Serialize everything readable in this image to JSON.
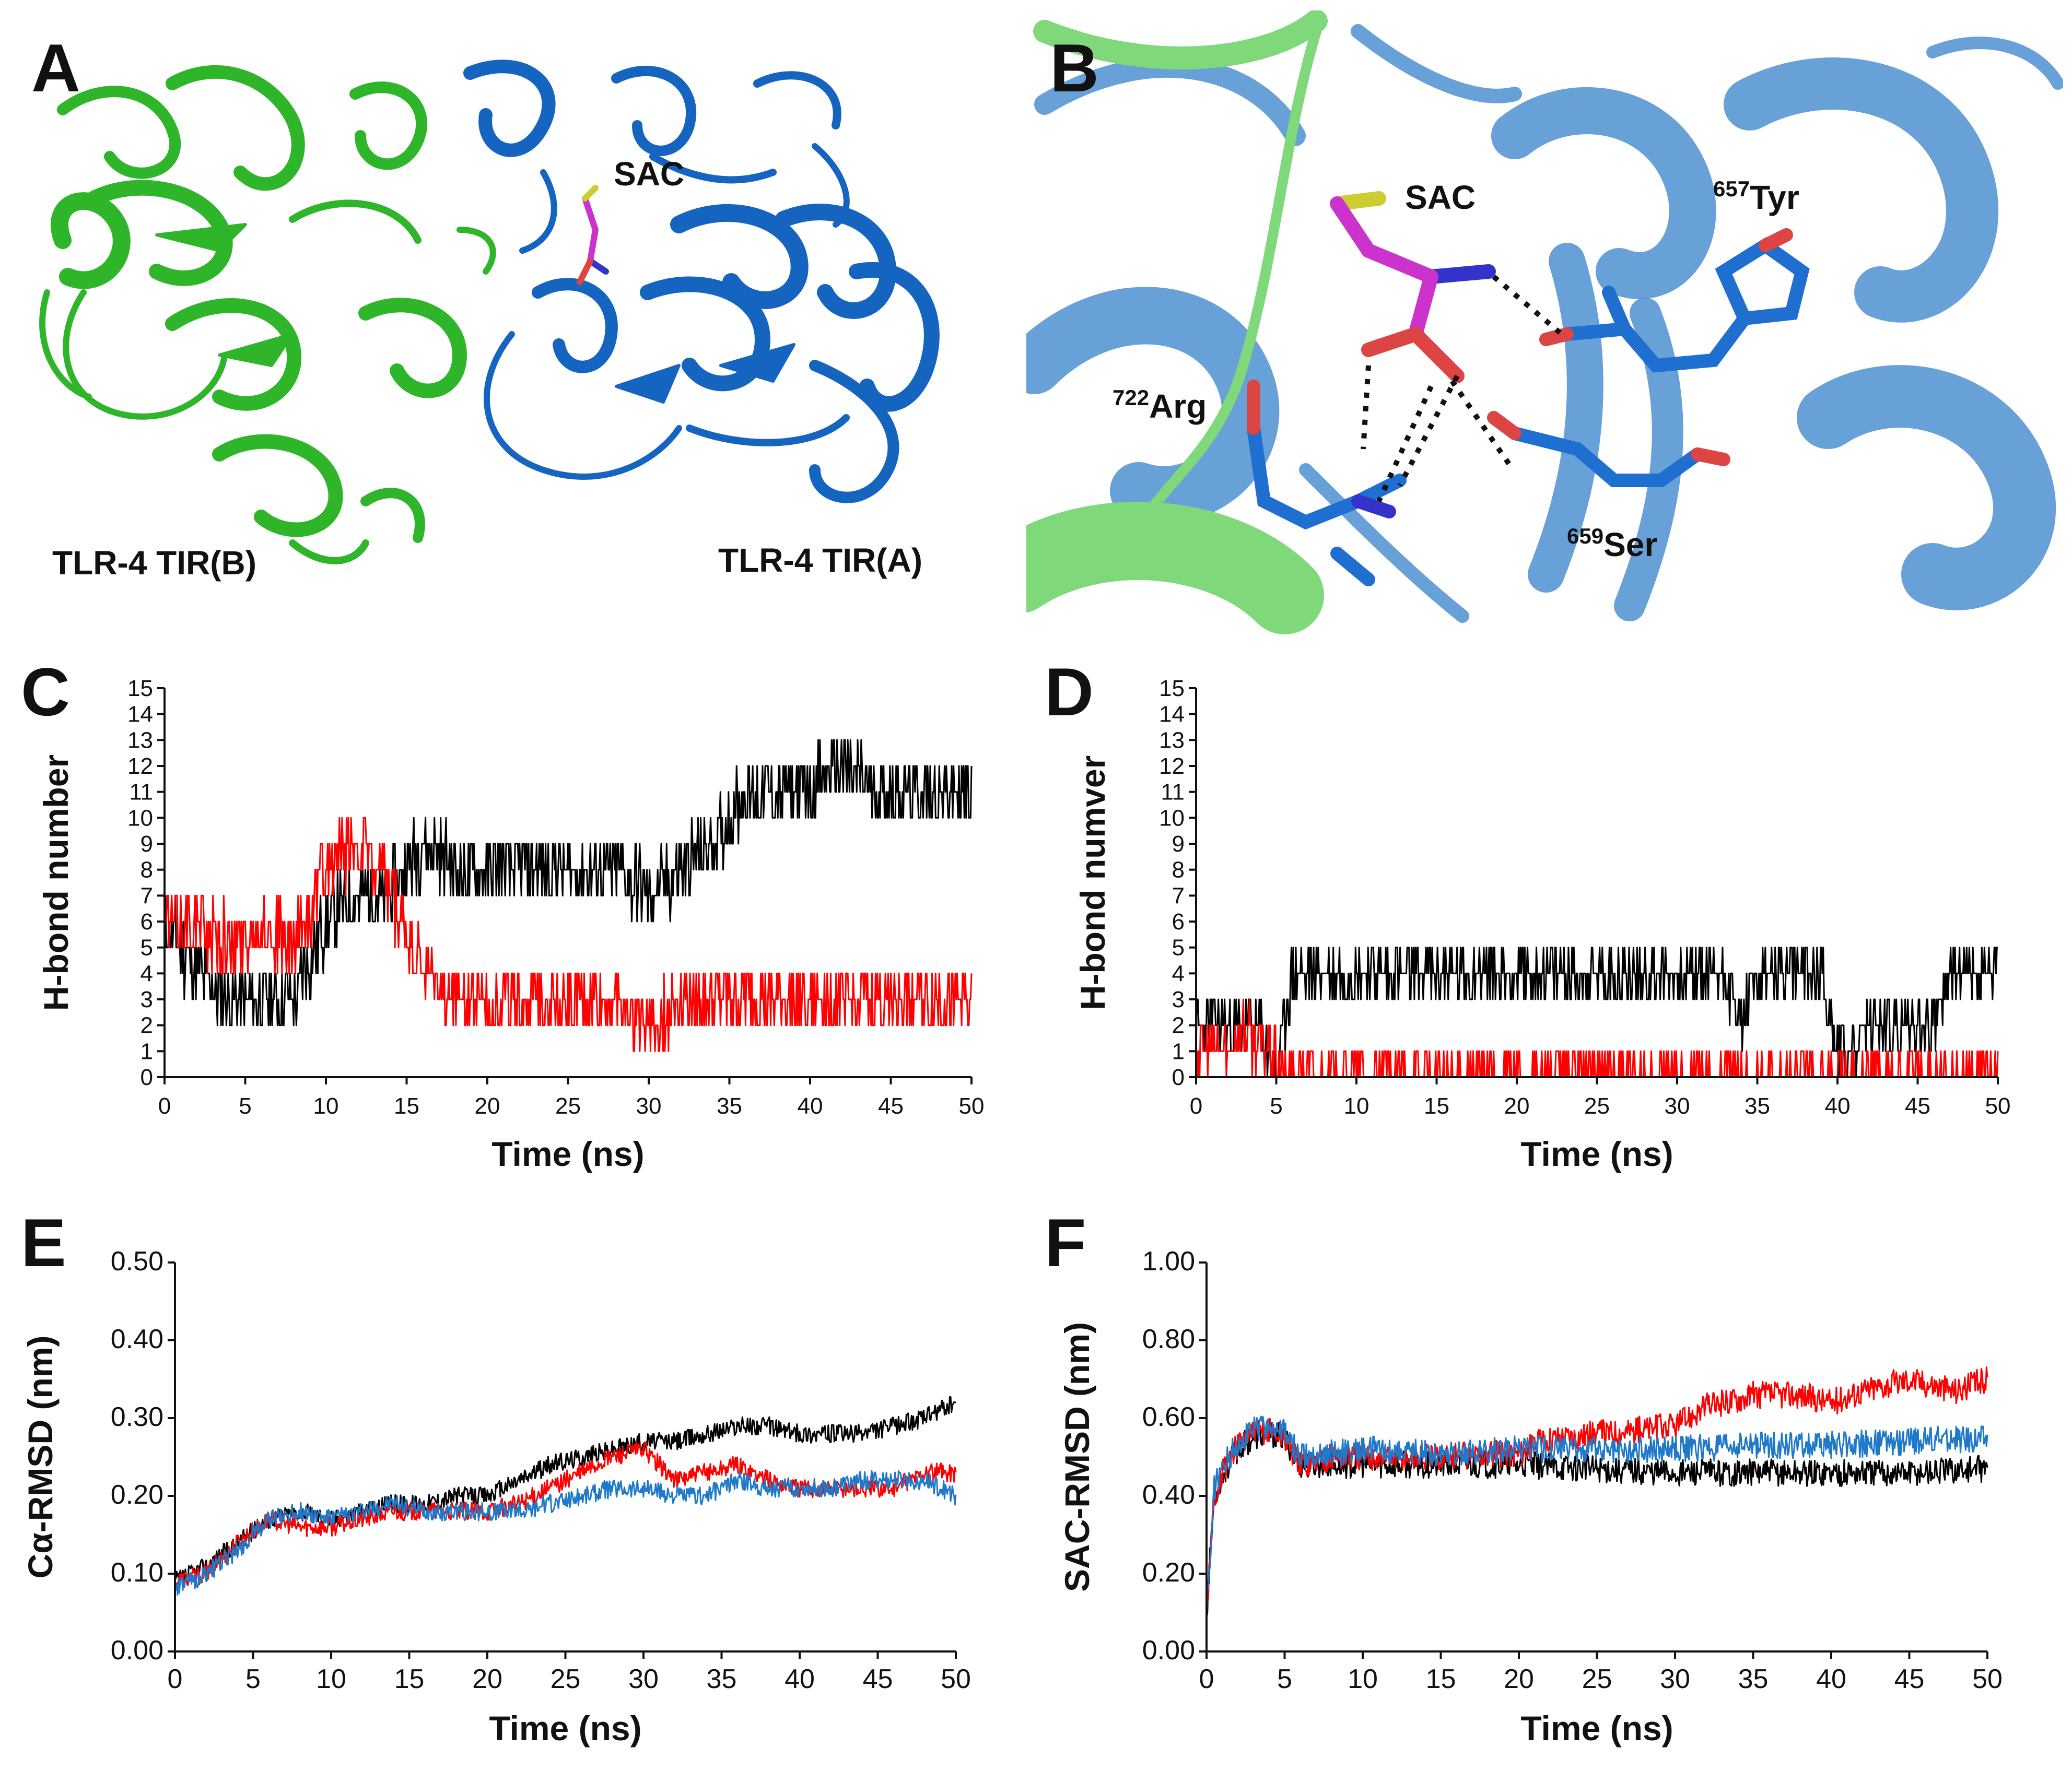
{
  "panels": {
    "A": {
      "letter": "A",
      "ligand_label": "SAC",
      "chain_b_label": "TLR-4 TIR(B)",
      "chain_a_label": "TLR-4 TIR(A)",
      "colors": {
        "chain_b": "#2fb52a",
        "chain_a": "#1565c0",
        "ligand": "#cc33cc"
      }
    },
    "B": {
      "letter": "B",
      "ligand_label": "SAC",
      "residues": [
        {
          "sup": "657",
          "name": "Tyr"
        },
        {
          "sup": "722",
          "name": "Arg"
        },
        {
          "sup": "659",
          "name": "Ser"
        }
      ],
      "colors": {
        "background": "#4d8fd1",
        "chain_b": "#7fd87a",
        "ligand": "#cc33cc",
        "residue": "#1f6fd0"
      }
    },
    "C": {
      "letter": "C"
    },
    "D": {
      "letter": "D"
    },
    "E": {
      "letter": "E"
    },
    "F": {
      "letter": "F"
    }
  },
  "chart_data": [
    {
      "panel": "C",
      "type": "line",
      "xlabel": "Time (ns)",
      "ylabel": "H-bond number",
      "xlim": [
        0,
        50
      ],
      "ylim": [
        0,
        15
      ],
      "xticks": [
        0,
        5,
        10,
        15,
        20,
        25,
        30,
        35,
        40,
        45,
        50
      ],
      "yticks": [
        0,
        1,
        2,
        3,
        4,
        5,
        6,
        7,
        8,
        9,
        10,
        11,
        12,
        13,
        14,
        15
      ],
      "series": [
        {
          "color": "#000000",
          "x": [
            0,
            2,
            4,
            6,
            8,
            10,
            12,
            14,
            16,
            18,
            20,
            22,
            24,
            26,
            28,
            30,
            32,
            34,
            36,
            38,
            40,
            42,
            44,
            46,
            48,
            50
          ],
          "y": [
            6,
            4,
            3,
            3,
            3,
            6,
            7,
            7,
            9,
            8,
            8,
            8,
            8,
            8,
            8,
            7,
            8,
            9,
            11,
            11,
            11,
            12,
            11,
            11,
            11,
            11
          ]
        },
        {
          "color": "#ff0000",
          "x": [
            0,
            2,
            4,
            6,
            8,
            10,
            12,
            14,
            16,
            18,
            20,
            22,
            24,
            26,
            28,
            30,
            32,
            34,
            36,
            38,
            40,
            42,
            44,
            46,
            48,
            50
          ],
          "y": [
            6,
            6,
            5,
            6,
            5,
            8,
            9,
            7,
            4,
            3,
            3,
            3,
            3,
            3,
            3,
            2,
            3,
            3,
            3,
            3,
            3,
            3,
            3,
            3,
            3,
            3
          ]
        }
      ]
    },
    {
      "panel": "D",
      "type": "line",
      "xlabel": "Time (ns)",
      "ylabel": "H-bond numver",
      "xlim": [
        0,
        50
      ],
      "ylim": [
        0,
        15
      ],
      "xticks": [
        0,
        5,
        10,
        15,
        20,
        25,
        30,
        35,
        40,
        45,
        50
      ],
      "yticks": [
        0,
        1,
        2,
        3,
        4,
        5,
        6,
        7,
        8,
        9,
        10,
        11,
        12,
        13,
        14,
        15
      ],
      "series": [
        {
          "color": "#000000",
          "x": [
            0,
            2,
            4,
            5,
            6,
            8,
            10,
            12,
            14,
            16,
            18,
            20,
            22,
            24,
            26,
            28,
            30,
            32,
            33,
            34,
            35,
            36,
            38,
            39,
            40,
            41,
            42,
            44,
            46,
            47,
            48,
            50
          ],
          "y": [
            2,
            2,
            2,
            0,
            4,
            4,
            4,
            4,
            4,
            4,
            4,
            4,
            4,
            4,
            4,
            4,
            4,
            4,
            4,
            2,
            4,
            4,
            4,
            4,
            1,
            1,
            2,
            2,
            2,
            4,
            4,
            4
          ]
        },
        {
          "color": "#ff0000",
          "x": [
            0,
            1,
            2,
            3,
            4,
            5,
            5.5,
            10,
            20,
            30,
            40,
            50
          ],
          "y": [
            1,
            1,
            1,
            2,
            1,
            1,
            0,
            0,
            0,
            0,
            0,
            0
          ]
        }
      ]
    },
    {
      "panel": "E",
      "type": "line",
      "xlabel": "Time (ns)",
      "ylabel": "Cα-RMSD (nm)",
      "xlim": [
        0,
        50
      ],
      "ylim": [
        0,
        0.5
      ],
      "xticks": [
        0,
        5,
        10,
        15,
        20,
        25,
        30,
        35,
        40,
        45,
        50
      ],
      "yticks": [
        "0.00",
        "0.10",
        "0.20",
        "0.30",
        "0.40",
        "0.50"
      ],
      "series": [
        {
          "color": "#000000",
          "x": [
            0,
            2,
            4,
            6,
            8,
            10,
            12,
            14,
            16,
            18,
            20,
            22,
            24,
            26,
            28,
            30,
            32,
            34,
            36,
            38,
            40,
            42,
            44,
            46,
            48,
            50
          ],
          "y": [
            0.09,
            0.11,
            0.14,
            0.17,
            0.18,
            0.17,
            0.18,
            0.19,
            0.19,
            0.2,
            0.2,
            0.22,
            0.24,
            0.25,
            0.26,
            0.27,
            0.27,
            0.28,
            0.29,
            0.29,
            0.28,
            0.28,
            0.28,
            0.29,
            0.3,
            0.32
          ]
        },
        {
          "color": "#ff0000",
          "x": [
            0,
            2,
            4,
            6,
            8,
            10,
            12,
            14,
            16,
            18,
            20,
            22,
            24,
            26,
            28,
            30,
            32,
            34,
            36,
            38,
            40,
            42,
            44,
            46,
            48,
            50
          ],
          "y": [
            0.09,
            0.1,
            0.14,
            0.17,
            0.16,
            0.16,
            0.17,
            0.18,
            0.18,
            0.18,
            0.18,
            0.19,
            0.21,
            0.23,
            0.25,
            0.26,
            0.22,
            0.23,
            0.24,
            0.22,
            0.21,
            0.21,
            0.21,
            0.21,
            0.23,
            0.23
          ]
        },
        {
          "color": "#1f78c8",
          "x": [
            0,
            2,
            4,
            6,
            8,
            10,
            12,
            14,
            16,
            18,
            20,
            22,
            24,
            26,
            28,
            30,
            32,
            34,
            36,
            38,
            40,
            42,
            44,
            46,
            48,
            50
          ],
          "y": [
            0.08,
            0.1,
            0.13,
            0.17,
            0.18,
            0.17,
            0.18,
            0.19,
            0.18,
            0.18,
            0.18,
            0.18,
            0.19,
            0.2,
            0.21,
            0.21,
            0.2,
            0.2,
            0.22,
            0.21,
            0.21,
            0.21,
            0.22,
            0.22,
            0.22,
            0.2
          ]
        }
      ]
    },
    {
      "panel": "F",
      "type": "line",
      "xlabel": "Time (ns)",
      "ylabel": "SAC-RMSD (nm)",
      "xlim": [
        0,
        50
      ],
      "ylim": [
        0,
        1.0
      ],
      "xticks": [
        0,
        5,
        10,
        15,
        20,
        25,
        30,
        35,
        40,
        45,
        50
      ],
      "yticks": [
        "0.00",
        "0.20",
        "0.40",
        "0.60",
        "0.80",
        "1.00"
      ],
      "series": [
        {
          "color": "#000000",
          "x": [
            0,
            0.5,
            1,
            2,
            3,
            4,
            5,
            6,
            8,
            10,
            15,
            20,
            25,
            30,
            35,
            40,
            45,
            50
          ],
          "y": [
            0.1,
            0.4,
            0.45,
            0.52,
            0.55,
            0.56,
            0.55,
            0.48,
            0.48,
            0.48,
            0.48,
            0.48,
            0.47,
            0.46,
            0.46,
            0.46,
            0.46,
            0.47
          ]
        },
        {
          "color": "#ff0000",
          "x": [
            0,
            0.5,
            1,
            2,
            3,
            4,
            5,
            6,
            8,
            10,
            15,
            20,
            22,
            25,
            30,
            32,
            35,
            38,
            40,
            42,
            45,
            48,
            50
          ],
          "y": [
            0.1,
            0.4,
            0.46,
            0.53,
            0.56,
            0.57,
            0.55,
            0.48,
            0.5,
            0.5,
            0.5,
            0.51,
            0.55,
            0.56,
            0.58,
            0.63,
            0.66,
            0.66,
            0.64,
            0.67,
            0.7,
            0.67,
            0.7
          ]
        },
        {
          "color": "#1f78c8",
          "x": [
            0,
            0.5,
            1,
            2,
            3,
            4,
            5,
            6,
            8,
            10,
            15,
            20,
            25,
            30,
            35,
            40,
            45,
            50
          ],
          "y": [
            0.1,
            0.42,
            0.47,
            0.54,
            0.57,
            0.58,
            0.56,
            0.5,
            0.51,
            0.52,
            0.51,
            0.52,
            0.52,
            0.52,
            0.53,
            0.53,
            0.54,
            0.55
          ]
        }
      ]
    }
  ]
}
